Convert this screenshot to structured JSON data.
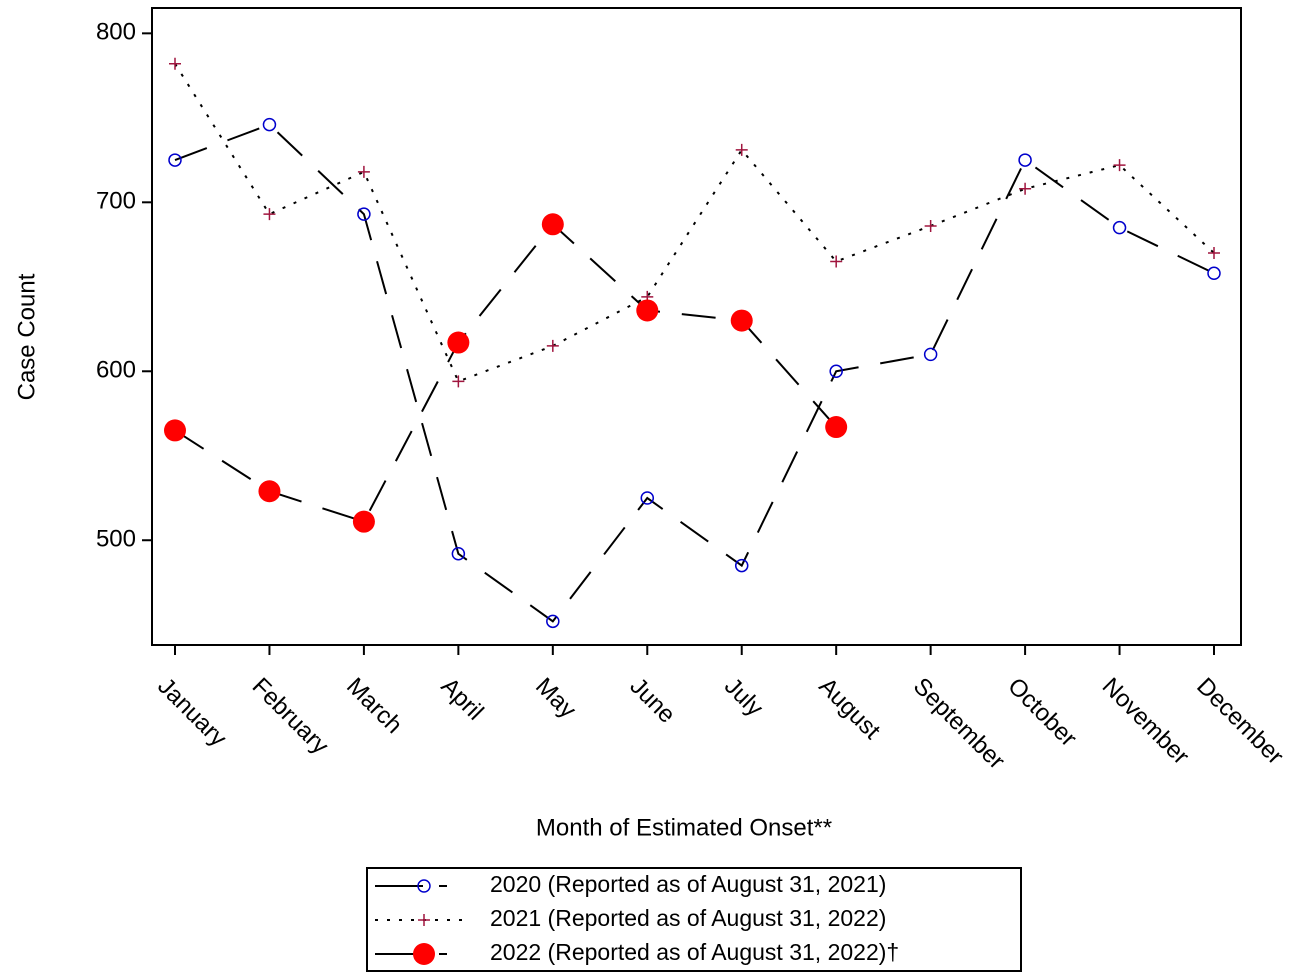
{
  "chart_data": {
    "type": "line",
    "x_label": "Month of Estimated Onset**",
    "y_label": "Case Count",
    "categories": [
      "January",
      "February",
      "March",
      "April",
      "May",
      "June",
      "July",
      "August",
      "September",
      "October",
      "November",
      "December"
    ],
    "series": [
      {
        "name": "2020 (Reported as of August 31, 2021)",
        "color": "#0000cc",
        "marker": "circle",
        "line_style": "dashed",
        "values": [
          725,
          746,
          693,
          492,
          452,
          525,
          485,
          600,
          610,
          725,
          685,
          658
        ]
      },
      {
        "name": "2021 (Reported as of August 31, 2022)",
        "color": "#a0153e",
        "marker": "plus",
        "line_style": "dotted",
        "values": [
          782,
          693,
          718,
          594,
          615,
          644,
          731,
          665,
          686,
          708,
          722,
          670
        ]
      },
      {
        "name": "2022 (Reported as of August 31, 2022)†",
        "color": "#ff0000",
        "marker": "dot",
        "line_style": "dashed",
        "values": [
          565,
          529,
          511,
          617,
          687,
          636,
          630,
          567,
          null,
          null,
          null,
          null
        ]
      }
    ],
    "ylim": [
      438,
      815
    ],
    "yticks": [
      500,
      600,
      700,
      800
    ],
    "grid": false,
    "legend": "bottom"
  }
}
